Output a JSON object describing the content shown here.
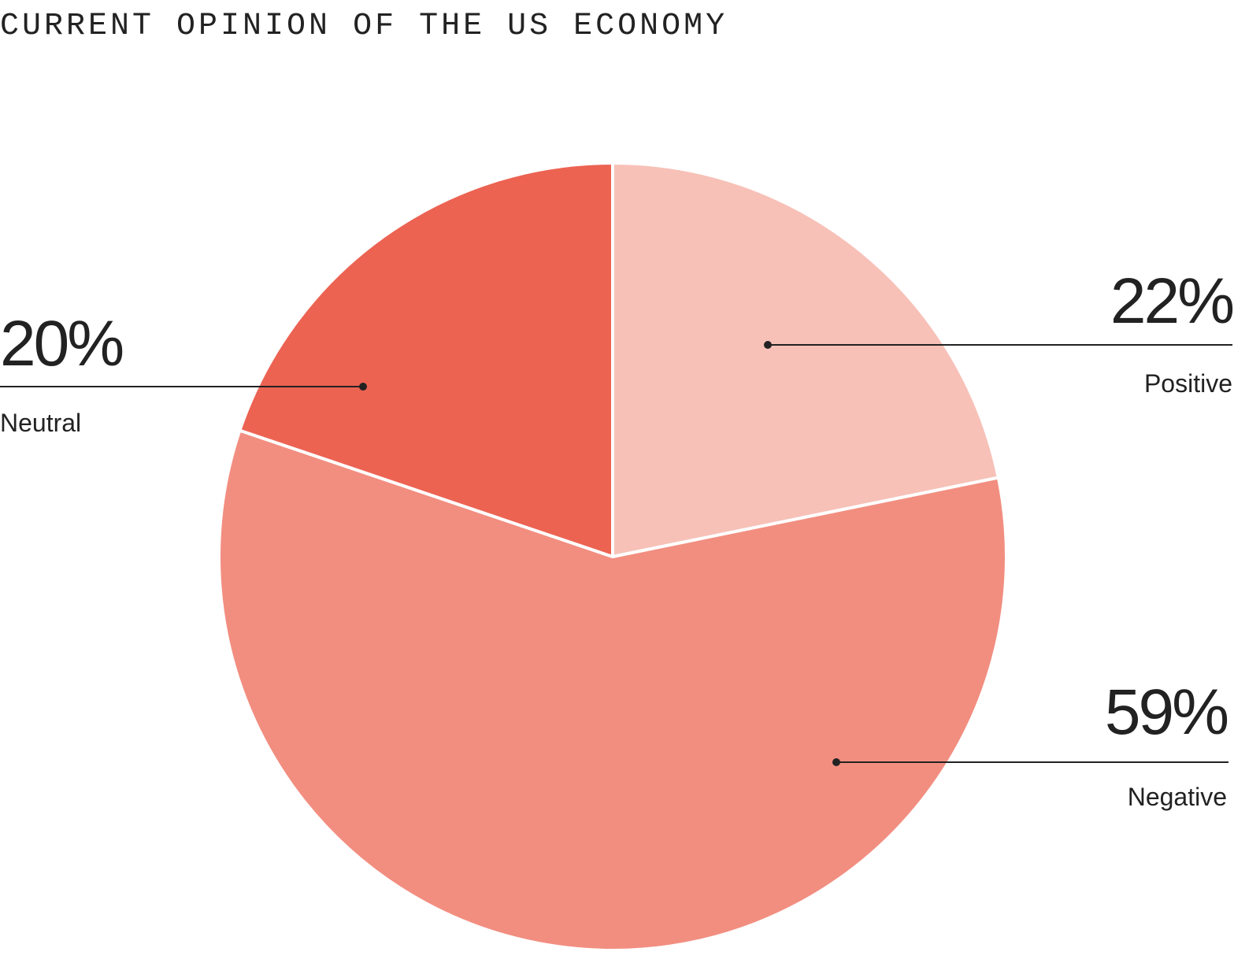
{
  "chart_data": {
    "type": "pie",
    "title": "CURRENT OPINION OF THE US ECONOMY",
    "categories": [
      "Positive",
      "Negative",
      "Neutral"
    ],
    "values": [
      22,
      59,
      20
    ],
    "value_labels": [
      "22%",
      "59%",
      "20%"
    ],
    "colors": [
      "#f7c1b8",
      "#f28e80",
      "#ec6352"
    ]
  }
}
